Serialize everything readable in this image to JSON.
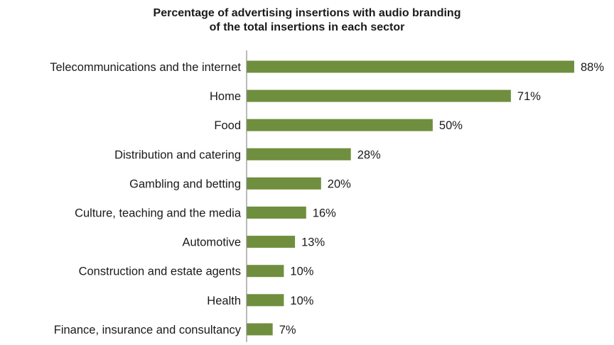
{
  "chart_data": {
    "type": "bar",
    "orientation": "horizontal",
    "title_line1": "Percentage of advertising insertions with audio branding",
    "title_line2": "of the total insertions in each sector",
    "categories": [
      "Telecommunications and the internet",
      "Home",
      "Food",
      "Distribution and catering",
      "Gambling and betting",
      "Culture, teaching and the media",
      "Automotive",
      "Construction and estate agents",
      "Health",
      "Finance, insurance and consultancy"
    ],
    "values": [
      88,
      71,
      50,
      28,
      20,
      16,
      13,
      10,
      10,
      7
    ],
    "value_labels": [
      "88%",
      "71%",
      "50%",
      "28%",
      "20%",
      "16%",
      "13%",
      "10%",
      "10%",
      "7%"
    ],
    "xlim": [
      0,
      88
    ],
    "grid": false,
    "bar_color": "#6f8f3e",
    "axis_color": "#8c8c8c"
  }
}
